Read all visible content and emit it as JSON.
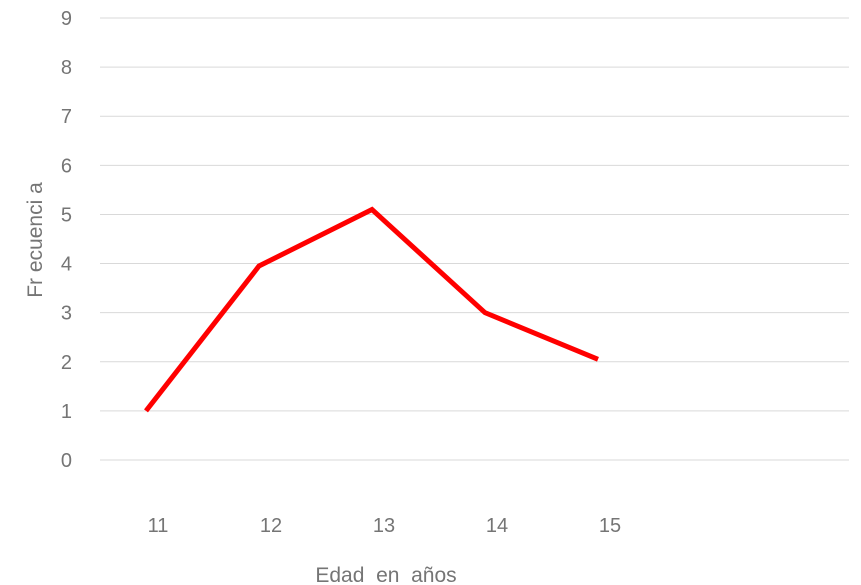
{
  "chart_data": {
    "type": "line",
    "title": "",
    "xlabel": "Edad  en  años",
    "ylabel": "Fr ecuenci a",
    "categories": [
      "11",
      "12",
      "13",
      "14",
      "15"
    ],
    "series": [
      {
        "values": [
          1,
          3.95,
          5.1,
          3,
          2.05
        ],
        "color": "#ff0000"
      }
    ],
    "ylim": [
      0,
      9
    ],
    "yticks": [
      "0",
      "1",
      "2",
      "3",
      "4",
      "5",
      "6",
      "7",
      "8",
      "9"
    ],
    "grid": true,
    "legend": "none"
  }
}
